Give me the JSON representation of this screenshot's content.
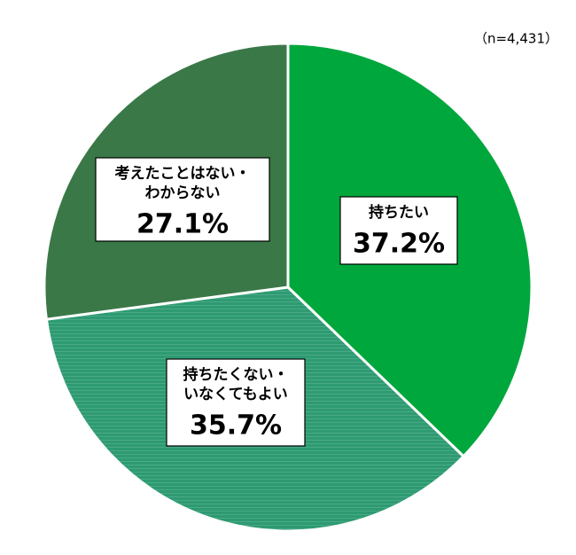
{
  "chart_data": {
    "type": "pie",
    "note": "（n=4,431）",
    "categories": [
      [
        "持ちたい"
      ],
      [
        "持ちたくない・",
        "いなくてもよい"
      ],
      [
        "考えたことはない・",
        "わからない"
      ]
    ],
    "values": [
      37.2,
      35.7,
      27.1
    ],
    "value_labels": [
      "37.2%",
      "35.7%",
      "27.1%"
    ],
    "colors": [
      "#00a73c",
      "#2e9b72",
      "#3a7848"
    ]
  }
}
